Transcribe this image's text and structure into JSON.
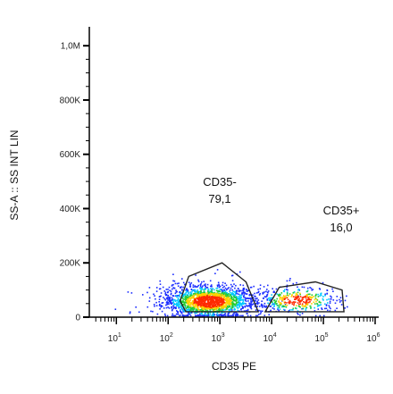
{
  "chart_data": {
    "type": "scatter",
    "subtype": "flow-cytometry-density-dot-plot",
    "xlabel": "CD35 PE",
    "ylabel": "SS-A :: SS INT LIN",
    "x_scale": "log",
    "y_scale": "linear",
    "xlim": [
      3,
      1000000
    ],
    "ylim": [
      0,
      1050000
    ],
    "x_ticks": [
      {
        "value": 10,
        "base": "10",
        "exp": "1"
      },
      {
        "value": 100,
        "base": "10",
        "exp": "2"
      },
      {
        "value": 1000,
        "base": "10",
        "exp": "3"
      },
      {
        "value": 10000,
        "base": "10",
        "exp": "4"
      },
      {
        "value": 100000,
        "base": "10",
        "exp": "5"
      },
      {
        "value": 1000000,
        "base": "10",
        "exp": "6"
      }
    ],
    "y_ticks": [
      {
        "value": 0,
        "label": "0"
      },
      {
        "value": 200000,
        "label": "200K"
      },
      {
        "value": 400000,
        "label": "400K"
      },
      {
        "value": 600000,
        "label": "600K"
      },
      {
        "value": 800000,
        "label": "800K"
      },
      {
        "value": 1000000,
        "label": "1,0M"
      }
    ],
    "colors": {
      "low": "#1a2cff",
      "mid_low": "#00c8ff",
      "mid": "#22cc33",
      "mid_high": "#ffd000",
      "high": "#ff2a00",
      "gate": "#222222"
    },
    "populations": [
      {
        "name": "CD35-",
        "center_x": 600,
        "center_y": 60000,
        "spread_log_x": 0.45,
        "spread_y": 30000,
        "share": 79.1
      },
      {
        "name": "CD35+",
        "center_x": 30000,
        "center_y": 65000,
        "spread_log_x": 0.4,
        "spread_y": 25000,
        "share": 16.0
      }
    ],
    "gates": [
      {
        "name": "CD35-",
        "label": "CD35-",
        "value": "79,1",
        "polygon": [
          [
            220,
            20000
          ],
          [
            170,
            60000
          ],
          [
            250,
            150000
          ],
          [
            1100,
            200000
          ],
          [
            3200,
            130000
          ],
          [
            5500,
            20000
          ]
        ]
      },
      {
        "name": "CD35+",
        "label": "CD35+",
        "value": "16,0",
        "polygon": [
          [
            7500,
            20000
          ],
          [
            14000,
            110000
          ],
          [
            70000,
            130000
          ],
          [
            230000,
            100000
          ],
          [
            250000,
            20000
          ]
        ]
      }
    ]
  }
}
